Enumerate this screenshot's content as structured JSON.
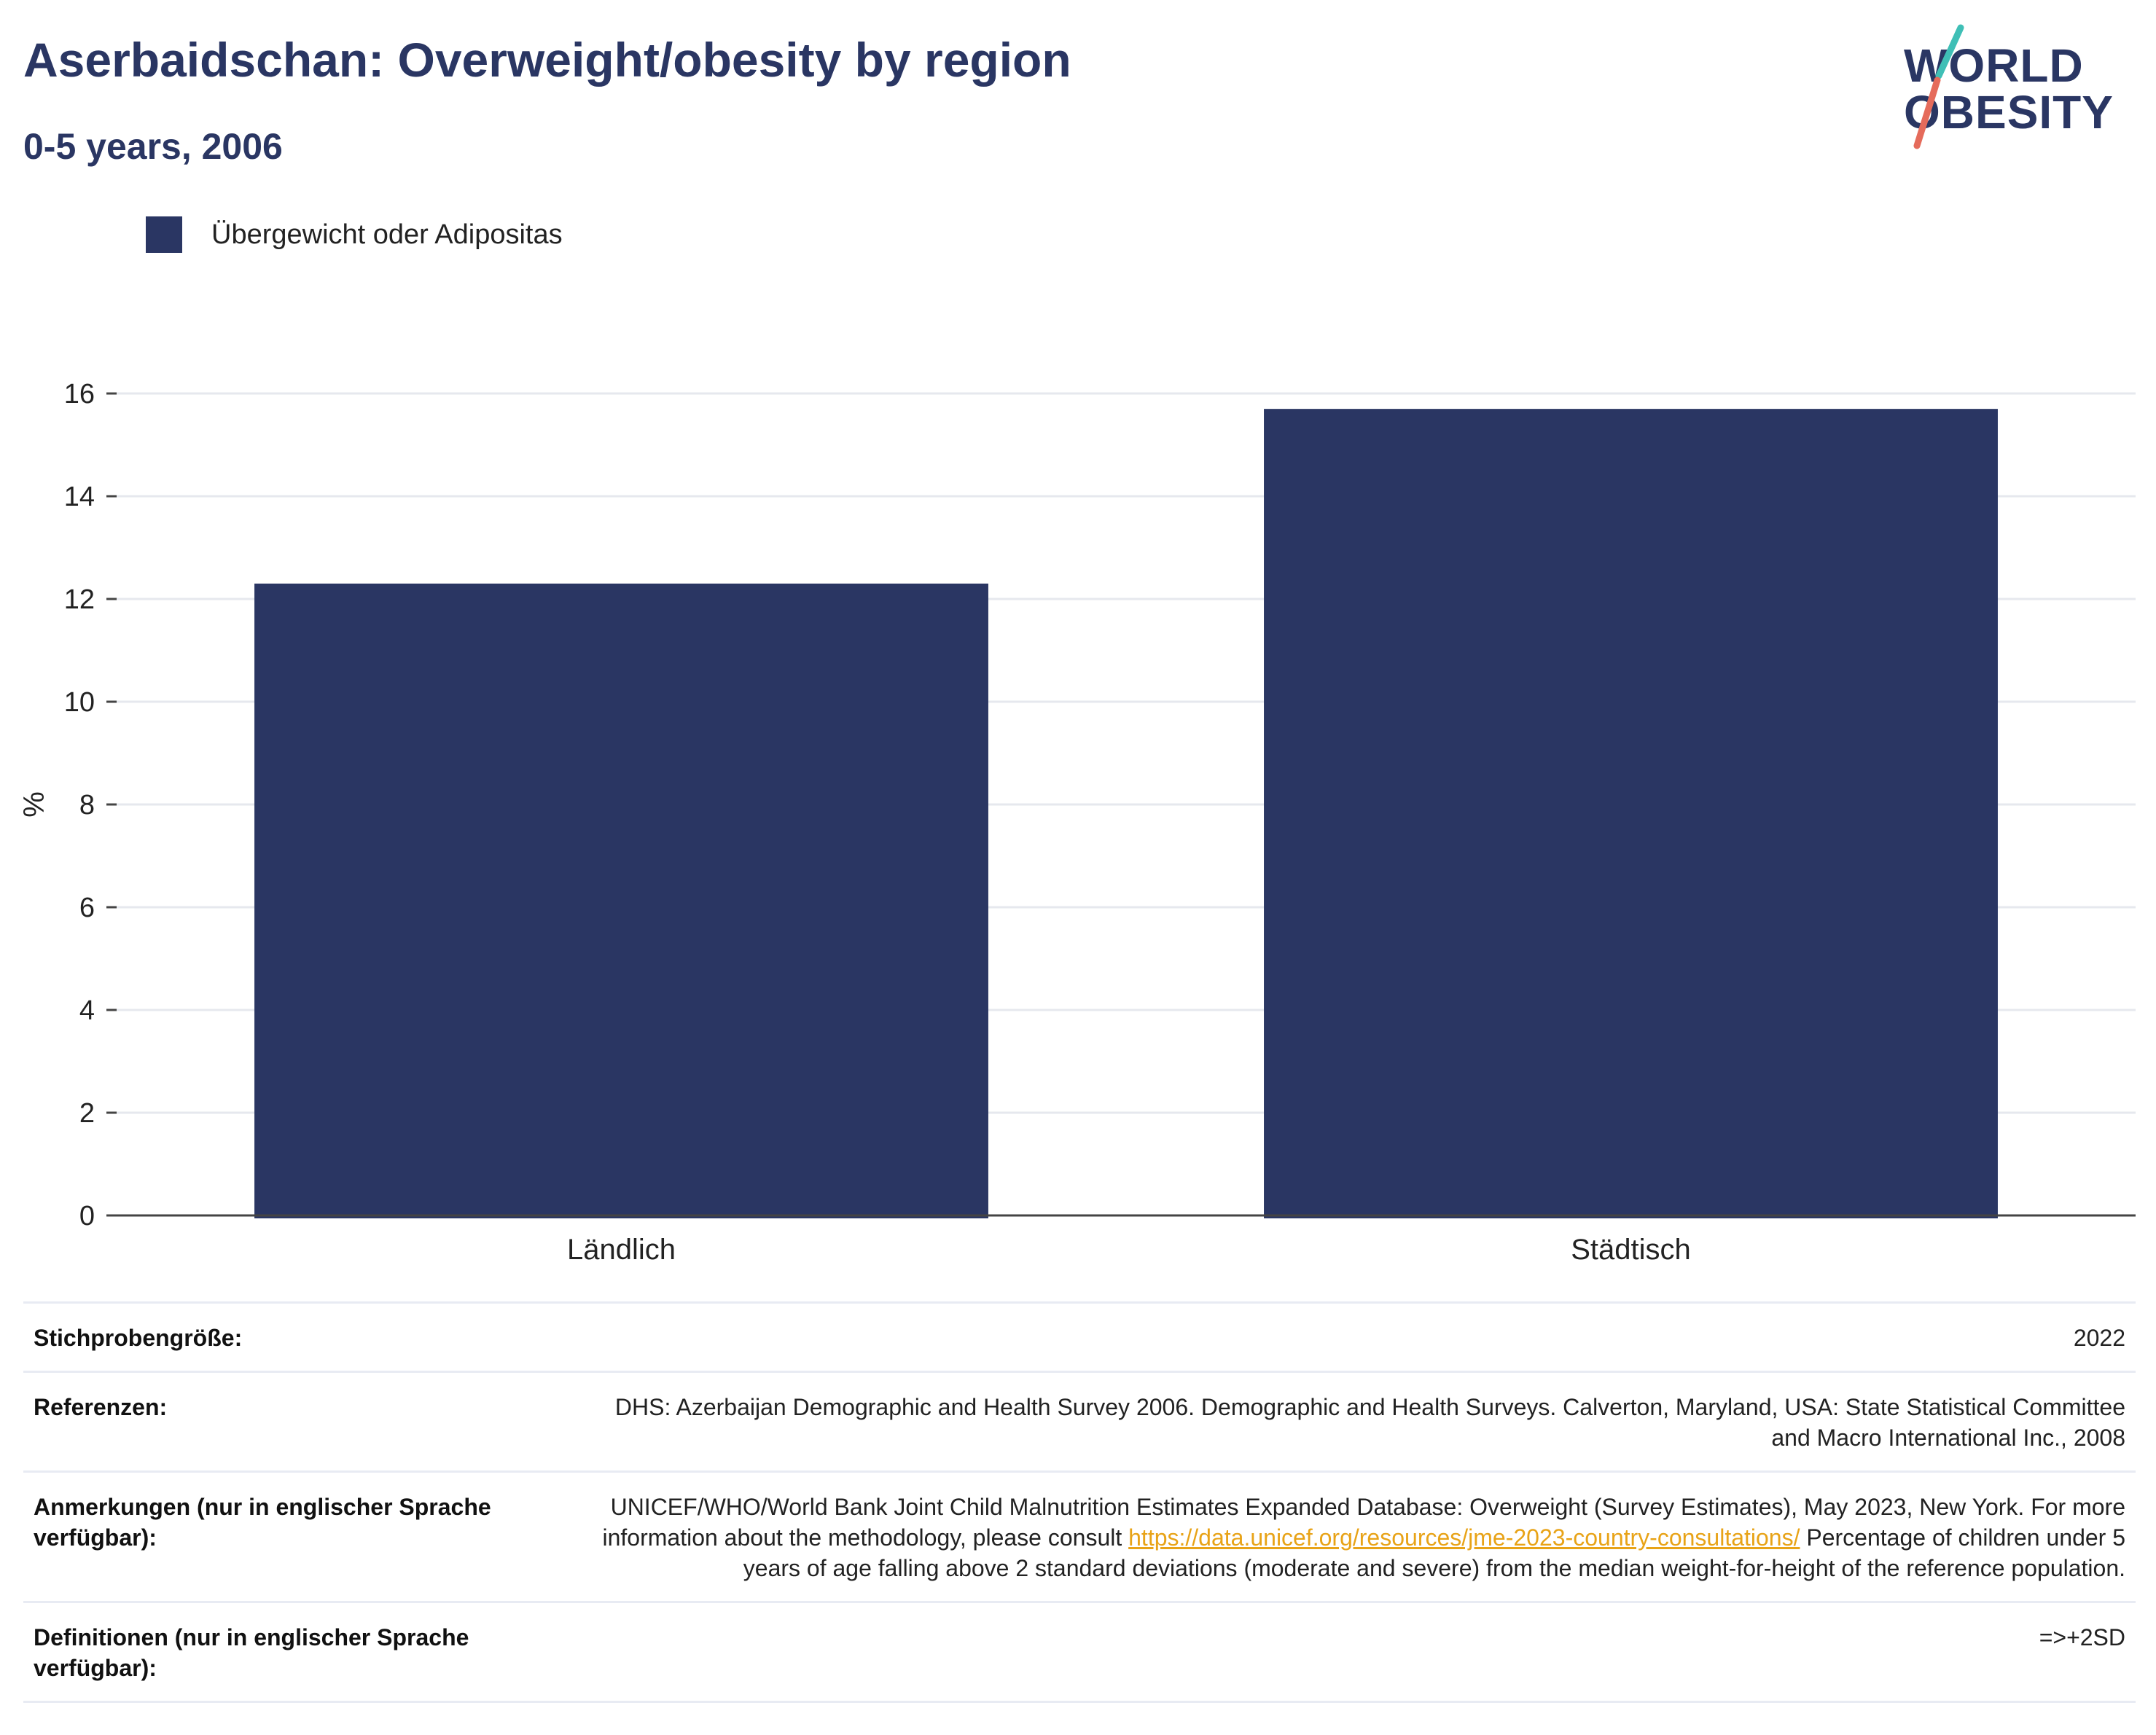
{
  "header": {
    "title": "Aserbaidschan: Overweight/obesity by region",
    "subtitle": "0-5 years, 2006"
  },
  "logo": {
    "line1": "WORLD",
    "line2": "OBESITY",
    "colors": {
      "text": "#2a3663",
      "slash_top": "#3fbfb6",
      "slash_bottom": "#e56b5b"
    }
  },
  "legend": {
    "items": [
      {
        "label": "Übergewicht oder Adipositas",
        "color": "#2a3663"
      }
    ]
  },
  "chart_data": {
    "type": "bar",
    "title": "Aserbaidschan: Overweight/obesity by region",
    "subtitle": "0-5 years, 2006",
    "categories": [
      "Ländlich",
      "Städtisch"
    ],
    "series": [
      {
        "name": "Übergewicht oder Adipositas",
        "values": [
          12.3,
          15.7
        ],
        "color": "#2a3663"
      }
    ],
    "xlabel": "",
    "ylabel": "%",
    "ylim": [
      0,
      16
    ],
    "yticks": [
      0,
      2,
      4,
      6,
      8,
      10,
      12,
      14,
      16
    ],
    "grid": true,
    "legend_position": "top-left"
  },
  "info": {
    "rows": [
      {
        "key": "Stichprobengröße:",
        "value": "2022"
      },
      {
        "key": "Referenzen:",
        "value": "DHS: Azerbaijan Demographic and Health Survey 2006. Demographic and Health Surveys. Calverton, Maryland, USA: State Statistical Committee and Macro International Inc., 2008"
      },
      {
        "key": "Anmerkungen (nur in englischer Sprache verfügbar):",
        "value_before": "UNICEF/WHO/World Bank Joint Child Malnutrition Estimates Expanded Database: Overweight (Survey Estimates), May 2023, New York. For more information about the methodology, please consult ",
        "link": "https://data.unicef.org/resources/jme-2023-country-consultations/",
        "value_after": " Percentage of children under 5 years of age falling above 2 standard deviations (moderate and severe) from the median weight-for-height of the reference population."
      },
      {
        "key": "Definitionen (nur in englischer Sprache verfügbar):",
        "value": "=>+2SD"
      }
    ]
  }
}
